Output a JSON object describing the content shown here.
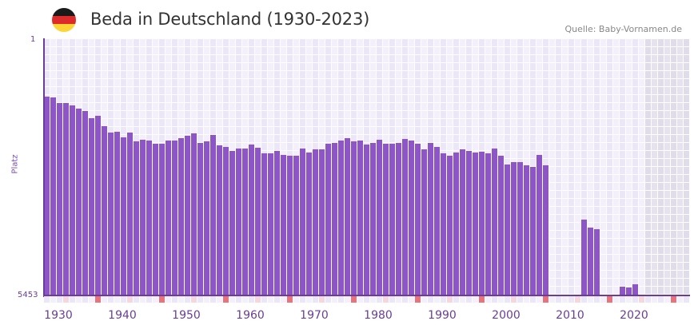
{
  "header": {
    "title": "Beda in Deutschland (1930-2023)",
    "source": "Quelle: Baby-Vornamen.de",
    "flag_colors": [
      "#1a1a1a",
      "#dd2b2b",
      "#fdd535"
    ]
  },
  "colors": {
    "bar": "#8e55c7",
    "axis": "#6a3d9a",
    "grid_light": "#f3f0fb",
    "grid_dark": "#ece7f8",
    "future_light": "#e6e3ee",
    "future_dark": "#e0dcea",
    "marker_strong": "#e8737a",
    "marker_soft": "#f6d7de"
  },
  "chart_data": {
    "type": "bar",
    "title": "Beda in Deutschland (1930-2023)",
    "xlabel": "",
    "ylabel": "Platz",
    "y_axis_inverted": true,
    "ylim": [
      1,
      5453
    ],
    "ytick_labels": [
      "1",
      "5453"
    ],
    "xtick_labels": [
      "1930",
      "1940",
      "1950",
      "1960",
      "1970",
      "1980",
      "1990",
      "2000",
      "2010",
      "2020"
    ],
    "grid": true,
    "legend": null,
    "x": [
      1930,
      1931,
      1932,
      1933,
      1934,
      1935,
      1936,
      1937,
      1938,
      1939,
      1940,
      1941,
      1942,
      1943,
      1944,
      1945,
      1946,
      1947,
      1948,
      1949,
      1950,
      1951,
      1952,
      1953,
      1954,
      1955,
      1956,
      1957,
      1958,
      1959,
      1960,
      1961,
      1962,
      1963,
      1964,
      1965,
      1966,
      1967,
      1968,
      1969,
      1970,
      1971,
      1972,
      1973,
      1974,
      1975,
      1976,
      1977,
      1978,
      1979,
      1980,
      1981,
      1982,
      1983,
      1984,
      1985,
      1986,
      1987,
      1988,
      1989,
      1990,
      1991,
      1992,
      1993,
      1994,
      1995,
      1996,
      1997,
      1998,
      1999,
      2000,
      2001,
      2002,
      2003,
      2004,
      2005,
      2006,
      2007,
      2008,
      2009,
      2010,
      2011,
      2012,
      2013,
      2014,
      2015,
      2016,
      2017,
      2018,
      2019,
      2020,
      2021,
      2022,
      2023
    ],
    "values": [
      1237,
      1254,
      1372,
      1372,
      1423,
      1491,
      1542,
      1694,
      1643,
      1863,
      1999,
      1982,
      2100,
      1999,
      2185,
      2151,
      2168,
      2236,
      2236,
      2168,
      2168,
      2117,
      2067,
      2016,
      2219,
      2185,
      2050,
      2270,
      2303,
      2388,
      2337,
      2337,
      2253,
      2320,
      2439,
      2439,
      2388,
      2473,
      2490,
      2490,
      2337,
      2422,
      2354,
      2354,
      2236,
      2219,
      2168,
      2117,
      2185,
      2168,
      2253,
      2219,
      2151,
      2236,
      2236,
      2219,
      2134,
      2168,
      2236,
      2354,
      2219,
      2303,
      2439,
      2490,
      2422,
      2354,
      2388,
      2422,
      2405,
      2439,
      2337,
      2490,
      2676,
      2625,
      2625,
      2693,
      2727,
      2473,
      2693,
      null,
      null,
      null,
      null,
      null,
      3845,
      4014,
      4048,
      null,
      null,
      null,
      5267,
      5284,
      5216,
      null
    ]
  }
}
